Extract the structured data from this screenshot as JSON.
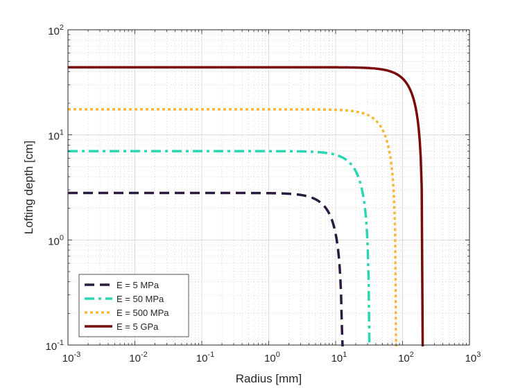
{
  "chart_data": {
    "type": "line",
    "xlabel": "Radius [mm]",
    "ylabel": "Lofting depth [cm]",
    "xscale": "log",
    "yscale": "log",
    "xlim": [
      0.001,
      1000
    ],
    "ylim": [
      0.1,
      100
    ],
    "grid": "on (major and minor, dotted)",
    "legend_position": "bottom-left",
    "x_ticks": [
      {
        "value": 0.001,
        "base": "10",
        "exp": "-3"
      },
      {
        "value": 0.01,
        "base": "10",
        "exp": "-2"
      },
      {
        "value": 0.1,
        "base": "10",
        "exp": "-1"
      },
      {
        "value": 1,
        "base": "10",
        "exp": "0"
      },
      {
        "value": 10,
        "base": "10",
        "exp": "1"
      },
      {
        "value": 100,
        "base": "10",
        "exp": "2"
      },
      {
        "value": 1000,
        "base": "10",
        "exp": "3"
      }
    ],
    "y_ticks": [
      {
        "value": 0.1,
        "base": "10",
        "exp": "-1"
      },
      {
        "value": 1,
        "base": "10",
        "exp": "0"
      },
      {
        "value": 10,
        "base": "10",
        "exp": "1"
      },
      {
        "value": 100,
        "base": "10",
        "exp": "2"
      }
    ],
    "series": [
      {
        "name": "E = 5 MPa",
        "color": "#2b1a3f",
        "dash": "dashed",
        "plateau": 2.8,
        "radius_max": 12.7
      },
      {
        "name": "E = 50 MPa",
        "color": "#2ad6b4",
        "dash": "dash-dot",
        "plateau": 7.0,
        "radius_max": 32
      },
      {
        "name": "E = 500 MPa",
        "color": "#f5b93a",
        "dash": "dotted",
        "plateau": 17.5,
        "radius_max": 80
      },
      {
        "name": "E = 5 GPa",
        "color": "#7a0a0a",
        "dash": "solid",
        "plateau": 44,
        "radius_max": 200
      }
    ]
  }
}
